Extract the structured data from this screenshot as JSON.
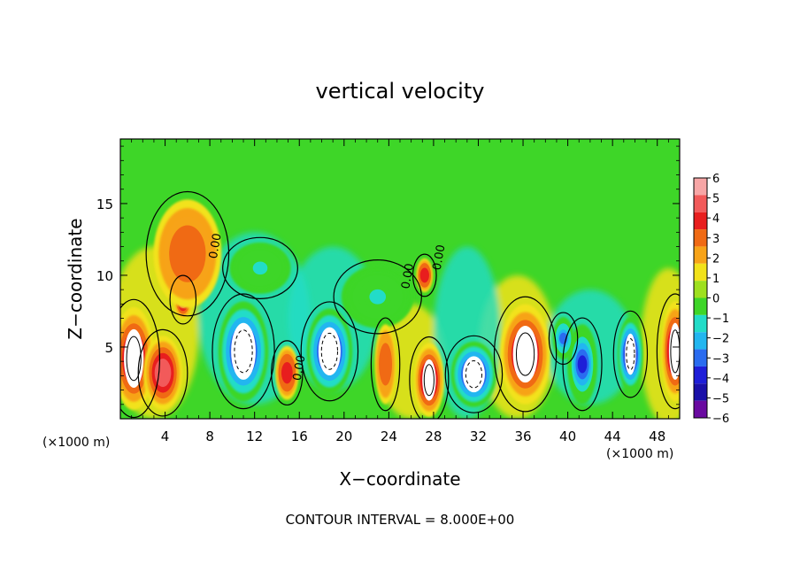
{
  "chart_data": {
    "type": "heatmap",
    "title": "vertical velocity",
    "xlabel": "X−coordinate",
    "ylabel": "Z−coordinate",
    "x_unit_label": "(×1000 m)",
    "y_unit_label": "(×1000 m)",
    "xlim": [
      0,
      50
    ],
    "ylim": [
      0,
      19.5
    ],
    "x_ticks": [
      4,
      8,
      12,
      16,
      20,
      24,
      28,
      32,
      36,
      40,
      44,
      48
    ],
    "y_ticks": [
      5,
      10,
      15
    ],
    "colorbar": {
      "levels": [
        6,
        5,
        4,
        3,
        2,
        1,
        0,
        -1,
        -2,
        -3,
        -4,
        -5,
        -6
      ],
      "colors": [
        "#f7a6a6",
        "#f25a5a",
        "#e81e1e",
        "#f06a14",
        "#f7a318",
        "#f2e21a",
        "#9ee01e",
        "#3ed628",
        "#22dcc8",
        "#22b6f0",
        "#2a6cf0",
        "#1e1ed8",
        "#1a10a8",
        "#6a0aa0"
      ]
    },
    "contour_labels": [
      {
        "text": "0.00",
        "x": 8.8,
        "z": 12.0,
        "rotate": -80
      },
      {
        "text": "0.00",
        "x": 26.0,
        "z": 9.9,
        "rotate": -80
      },
      {
        "text": "0.00",
        "x": 28.8,
        "z": 11.2,
        "rotate": -80
      },
      {
        "text": "0.00",
        "x": 16.3,
        "z": 3.5,
        "rotate": -80
      }
    ],
    "updrafts": [
      {
        "x": 1.2,
        "z": 4.2,
        "rx": 1.6,
        "rz": 3.4,
        "w": 6
      },
      {
        "x": 3.8,
        "z": 3.2,
        "rx": 1.5,
        "rz": 2.4,
        "w": 5
      },
      {
        "x": 5.6,
        "z": 8.3,
        "rx": 0.6,
        "rz": 1.2,
        "w": 5
      },
      {
        "x": 14.9,
        "z": 3.2,
        "rx": 0.8,
        "rz": 1.7,
        "w": 4
      },
      {
        "x": 23.7,
        "z": 3.8,
        "rx": 0.7,
        "rz": 2.6,
        "w": 3
      },
      {
        "x": 27.6,
        "z": 2.7,
        "rx": 1.1,
        "rz": 2.4,
        "w": 6
      },
      {
        "x": 27.2,
        "z": 10.0,
        "rx": 0.5,
        "rz": 1.0,
        "w": 4
      },
      {
        "x": 36.2,
        "z": 4.5,
        "rx": 2.0,
        "rz": 3.3,
        "w": 6
      },
      {
        "x": 49.6,
        "z": 4.7,
        "rx": 1.0,
        "rz": 3.3,
        "w": 6
      },
      {
        "x": 6.0,
        "z": 11.5,
        "rx": 2.8,
        "rz": 3.6,
        "w": 3
      }
    ],
    "downdrafts": [
      {
        "x": 11.0,
        "z": 4.7,
        "rx": 2.0,
        "rz": 3.3,
        "w": -6
      },
      {
        "x": 18.7,
        "z": 4.7,
        "rx": 1.8,
        "rz": 2.8,
        "w": -6
      },
      {
        "x": 31.6,
        "z": 3.1,
        "rx": 1.8,
        "rz": 2.1,
        "w": -6
      },
      {
        "x": 45.6,
        "z": 4.5,
        "rx": 0.9,
        "rz": 2.4,
        "w": -6
      },
      {
        "x": 41.3,
        "z": 3.8,
        "rx": 1.1,
        "rz": 2.6,
        "w": -5
      },
      {
        "x": 39.6,
        "z": 5.6,
        "rx": 0.7,
        "rz": 1.3,
        "w": -4
      },
      {
        "x": 12.5,
        "z": 10.5,
        "rx": 2.5,
        "rz": 1.6,
        "w": -2
      },
      {
        "x": 23.0,
        "z": 8.5,
        "rx": 3.0,
        "rz": 2.0,
        "w": -2
      }
    ]
  },
  "footer": {
    "contour_interval": "CONTOUR INTERVAL = 8.000E+00"
  }
}
